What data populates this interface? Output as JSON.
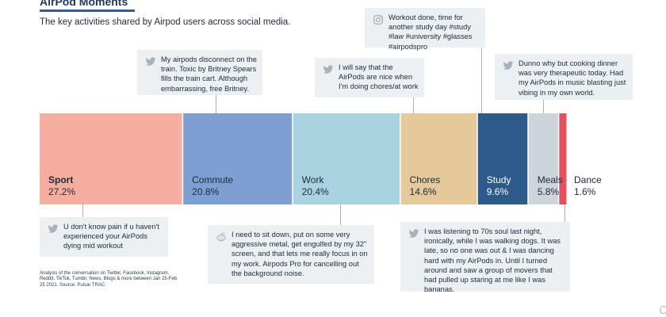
{
  "header": {
    "title": "AirPod Moments",
    "subtitle": "The key activities shared by Airpod users across social media."
  },
  "source": "Analysis of the conversation on Twitter, Facebook, Instagram, Reddit, TikTok, Tumblr, News, Blogs & more between Jan 25-Feb 25 2021. Source: Pulsar TRAC.",
  "colors": {
    "Sport": "#f5ada0",
    "Commute": "#7f9fd3",
    "Work": "#a9d3e0",
    "Chores": "#e6c99b",
    "Study": "#2d5a8a",
    "Meals": "#cdd4dc",
    "Dance": "#e1525e",
    "callout_bg": "#edf0f2",
    "leader": "#a7aeb6"
  },
  "chart_data": {
    "type": "bar",
    "orientation": "horizontal-stacked",
    "unit": "%",
    "categories": [
      "Sport",
      "Commute",
      "Work",
      "Chores",
      "Study",
      "Meals",
      "Dance"
    ],
    "values": [
      27.2,
      20.8,
      20.4,
      14.6,
      9.6,
      5.8,
      1.6
    ],
    "value_labels": [
      "27.2%",
      "20.8%",
      "20.4%",
      "14.6%",
      "9.6%",
      "5.8%",
      "1.6%"
    ],
    "title": "AirPod Moments",
    "subtitle": "The key activities shared by Airpod users across social media.",
    "xlabel": "",
    "ylabel": "",
    "grid": false,
    "legend": "none"
  },
  "callouts": [
    {
      "category": "Commute",
      "icon": "twitter-icon",
      "text": "My airpods disconnect on the train. Toxic by Britney Spears fills the train cart. Although embarrassing, free Britney."
    },
    {
      "category": "Work",
      "icon": "twitter-icon",
      "text": "I will say that the AirPods are nice when I'm doing chores/at work"
    },
    {
      "category": "Study",
      "icon": "instagram-icon",
      "text": "Workout done, time for another study day #study #law #university #glasses #airpodspro"
    },
    {
      "category": "Meals",
      "icon": "twitter-icon",
      "text": "Dunno why but cooking dinner was very therapeutic today. Had my AirPods in music blasting just vibing in my own world."
    },
    {
      "category": "Sport",
      "icon": "twitter-icon",
      "text": "U don't know pain if u haven't experienced your AirPods dying mid workout"
    },
    {
      "category": "Work",
      "icon": "reddit-icon",
      "text": "I need to sit down, put on some very aggressive metal, get engulfed by my 32\" screen, and that lets me really focus in on my work. Airpods Pro for cancelling out the background noise."
    },
    {
      "category": "Dance",
      "icon": "twitter-icon",
      "text": "I was listening to 70s soul last night, ironically, while I was walking dogs. It was late, so no one was out & I was dancing hard with my AirPods in. Until I turned around and saw a group of movers that had pulled up staring at me like I was bananas."
    }
  ]
}
